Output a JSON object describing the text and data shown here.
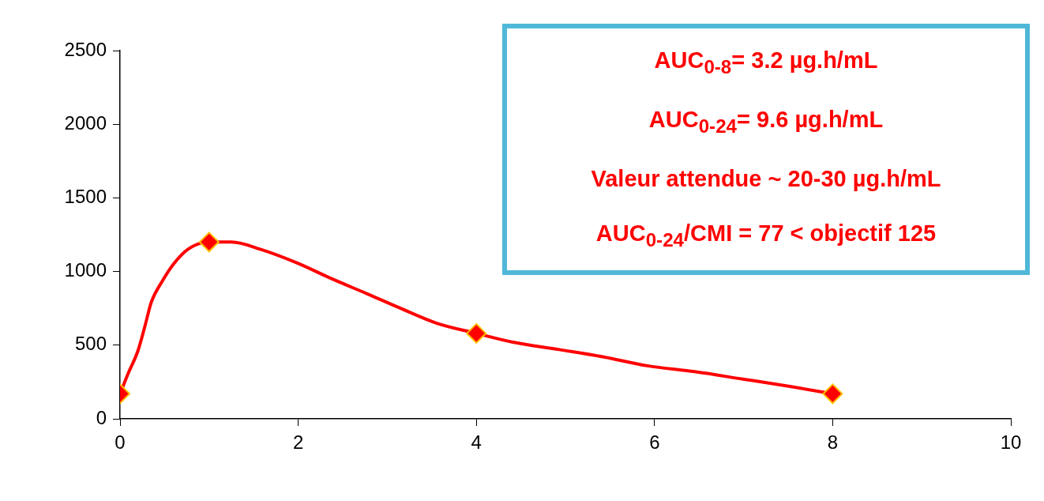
{
  "chart_data": {
    "type": "line",
    "series": [
      {
        "color": "#ff0000",
        "x": [
          0,
          0.1,
          0.2,
          0.28,
          0.35,
          0.48,
          0.6,
          0.76,
          1,
          1.25,
          1.58,
          1.98,
          2.38,
          2.77,
          3.15,
          3.55,
          4,
          4.41,
          4.93,
          5.43,
          5.92,
          6.45,
          6.99,
          7.52,
          8
        ],
        "values": [
          170,
          320,
          460,
          630,
          790,
          940,
          1050,
          1150,
          1200,
          1200,
          1150,
          1060,
          950,
          850,
          750,
          650,
          580,
          520,
          470,
          420,
          360,
          320,
          270,
          220,
          170
        ]
      },
      {
        "type": "scatter",
        "color": "#ff0000",
        "marker": "diamond",
        "x": [
          0,
          1,
          4,
          8
        ],
        "values": [
          170,
          1200,
          580,
          170
        ]
      }
    ],
    "xlim": [
      0,
      10
    ],
    "xticks": [
      0,
      2,
      4,
      6,
      8,
      10
    ],
    "ylim": [
      0,
      2500
    ],
    "yticks": [
      0,
      500,
      1000,
      1500,
      2000,
      2500
    ],
    "grid": false,
    "legend": false,
    "line_style": "solid",
    "annotations": [
      "AUC$_{0-8}$= 3.2 µg.h/mL",
      "AUC$_{0-24}$= 9.6 µg.h/mL",
      "Valeur attendue ~ 20-30 µg.h/mL",
      "AUC$_{0-24}$/CMI = 77 < objectif 125"
    ]
  }
}
